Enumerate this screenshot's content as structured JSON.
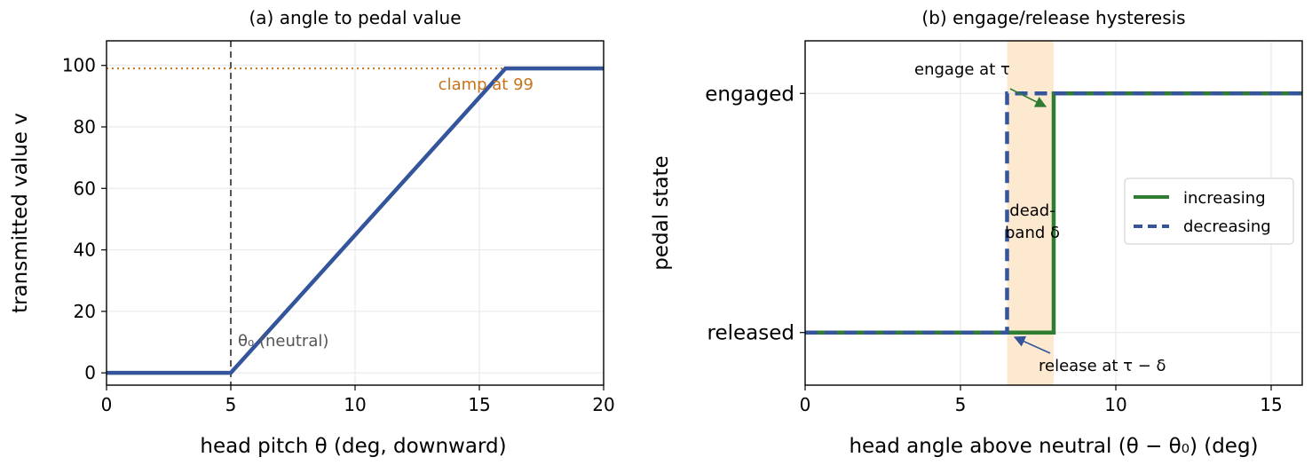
{
  "colors": {
    "blue": "#34559b",
    "green": "#2e7d32",
    "orange": "#c8731a",
    "gray": "#555555",
    "band": "#fde9cf"
  },
  "chart_data": [
    {
      "type": "line",
      "title": "(a) angle to pedal value",
      "xlabel": "head pitch θ (deg, downward)",
      "ylabel": "transmitted value v",
      "xlim": [
        0,
        20
      ],
      "ylim": [
        -4,
        108
      ],
      "xticks": [
        0,
        5,
        10,
        15,
        20
      ],
      "yticks": [
        0,
        20,
        40,
        60,
        80,
        100
      ],
      "grid": true,
      "series": [
        {
          "x": [
            0,
            5,
            16.05,
            20
          ],
          "y": [
            0,
            0,
            99,
            99
          ]
        }
      ],
      "reference_lines": [
        {
          "kind": "horizontal",
          "y": 99,
          "style": "dotted",
          "label": "clamp at 99"
        },
        {
          "kind": "vertical",
          "x": 5,
          "style": "dashed",
          "label": "θ₀ (neutral)"
        }
      ]
    },
    {
      "type": "line",
      "title": "(b) engage/release hysteresis",
      "xlabel": "head angle above neutral (θ − θ₀) (deg)",
      "ylabel": "pedal state",
      "xlim": [
        0,
        16
      ],
      "ylim": [
        -0.22,
        1.22
      ],
      "xticks": [
        0,
        5,
        10,
        15
      ],
      "yticks": [
        0,
        1
      ],
      "ytick_labels": [
        "released",
        "engaged"
      ],
      "grid": true,
      "legend_position": "center-right",
      "shaded_band": {
        "x0": 6.5,
        "x1": 8,
        "label": "dead-band δ"
      },
      "series": [
        {
          "name": "increasing",
          "style": "solid",
          "x": [
            0,
            8,
            8,
            16
          ],
          "y": [
            0,
            0,
            1,
            1
          ]
        },
        {
          "name": "decreasing",
          "style": "dashed",
          "x": [
            0,
            6.5,
            6.5,
            16
          ],
          "y": [
            0,
            0,
            1,
            1
          ]
        }
      ],
      "annotations": [
        {
          "text": "engage at τ",
          "x": 8,
          "y": 1
        },
        {
          "text": "release at τ − δ",
          "x": 6.5,
          "y": 0
        }
      ]
    }
  ]
}
